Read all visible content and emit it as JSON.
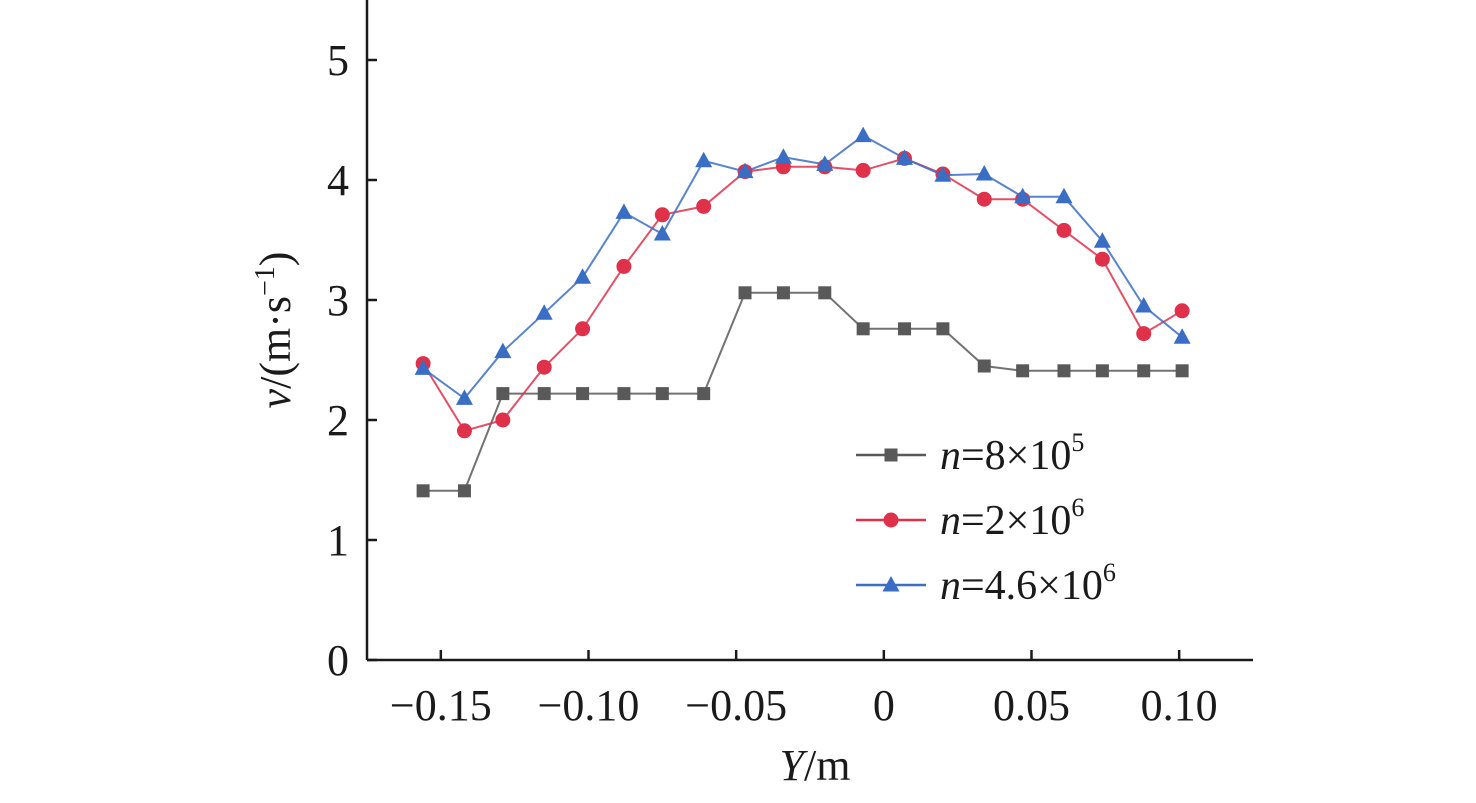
{
  "chart_data": {
    "type": "line",
    "xlabel": {
      "var": "Y",
      "unit": "/m"
    },
    "ylabel": {
      "var": "v",
      "unit": "/(m·s",
      "sup": "−1",
      "close": ")"
    },
    "xlim": [
      -0.175,
      0.125
    ],
    "ylim": [
      0,
      5.5
    ],
    "xticks": [
      {
        "value": -0.15,
        "label": "−0.15"
      },
      {
        "value": -0.1,
        "label": "−0.10"
      },
      {
        "value": -0.05,
        "label": "−0.05"
      },
      {
        "value": 0,
        "label": "0"
      },
      {
        "value": 0.05,
        "label": "0.05"
      },
      {
        "value": 0.1,
        "label": "0.10"
      }
    ],
    "yticks": [
      {
        "value": 0,
        "label": "0"
      },
      {
        "value": 1,
        "label": "1"
      },
      {
        "value": 2,
        "label": "2"
      },
      {
        "value": 3,
        "label": "3"
      },
      {
        "value": 4,
        "label": "4"
      },
      {
        "value": 5,
        "label": "5"
      }
    ],
    "grid": false,
    "legend_position": "lower-right",
    "x": [
      -0.156,
      -0.142,
      -0.129,
      -0.115,
      -0.102,
      -0.088,
      -0.075,
      -0.061,
      -0.047,
      -0.034,
      -0.02,
      -0.007,
      0.007,
      0.02,
      0.034,
      0.047,
      0.061,
      0.074,
      0.088,
      0.101
    ],
    "series": [
      {
        "name": "n=8×10^5",
        "legend": {
          "var": "n",
          "eq": "=8×10",
          "sup": "5"
        },
        "color": "#595959",
        "marker": "square",
        "values": [
          1.41,
          1.41,
          2.22,
          2.22,
          2.22,
          2.22,
          2.22,
          2.22,
          3.06,
          3.06,
          3.06,
          2.76,
          2.76,
          2.76,
          2.45,
          2.41,
          2.41,
          2.41,
          2.41,
          2.41
        ]
      },
      {
        "name": "n=2×10^6",
        "legend": {
          "var": "n",
          "eq": "=2×10",
          "sup": "6"
        },
        "color": "#e0314b",
        "marker": "circle",
        "values": [
          2.47,
          1.91,
          2.0,
          2.44,
          2.76,
          3.28,
          3.71,
          3.78,
          4.07,
          4.11,
          4.11,
          4.08,
          4.18,
          4.05,
          3.84,
          3.84,
          3.58,
          3.34,
          2.72,
          2.91
        ]
      },
      {
        "name": "n=4.6×10^6",
        "legend": {
          "var": "n",
          "eq": "=4.6×10",
          "sup": "6"
        },
        "color": "#3a6ec4",
        "marker": "triangle",
        "values": [
          2.43,
          2.18,
          2.57,
          2.89,
          3.19,
          3.73,
          3.55,
          4.16,
          4.07,
          4.19,
          4.13,
          4.37,
          4.18,
          4.04,
          4.05,
          3.86,
          3.86,
          3.49,
          2.95,
          2.69
        ]
      }
    ]
  }
}
